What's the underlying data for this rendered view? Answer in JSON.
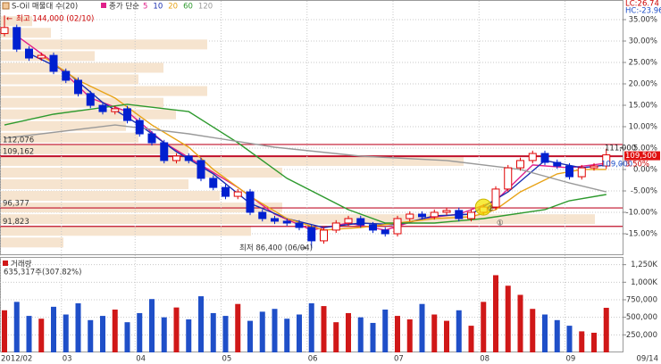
{
  "chart_data": [
    {
      "type": "candlestick",
      "title": "S-Oil 매물대 수(20)",
      "ma_legend_title": "종가 단순",
      "high_label": "최고 144,000 (02/10)",
      "low_label": "최저 86,400 (06/04)",
      "lc_label": "LC:26.74",
      "hc_label": "HC:-23.96",
      "change_label": "3.50%",
      "annotations": [
        "①",
        "②"
      ],
      "up_color": "#e00000",
      "down_color": "#0020d0",
      "open": [
        139500,
        141000,
        135650,
        133450,
        134100,
        130150,
        127950,
        124650,
        121750,
        120200,
        120900,
        118000,
        114700,
        112500,
        108100,
        109200,
        108100,
        103700,
        101450,
        99250,
        100350,
        95300,
        93750,
        93100,
        92650,
        91550,
        88250,
        90900,
        92650,
        93750,
        92200,
        90900,
        90000,
        93750,
        94850,
        94200,
        95300,
        95750,
        93750,
        95300,
        96600,
        101050,
        106300,
        108100,
        109850,
        107650,
        106750,
        104100,
        106300,
        106750
      ],
      "high": [
        144000,
        141700,
        136350,
        134800,
        134800,
        130850,
        128650,
        125350,
        122450,
        121600,
        121600,
        118700,
        115400,
        113200,
        109900,
        109900,
        108800,
        104400,
        102150,
        101050,
        101050,
        96000,
        94450,
        93800,
        93350,
        92250,
        91600,
        93350,
        94450,
        94450,
        92900,
        91600,
        94450,
        95550,
        95550,
        96000,
        96450,
        96450,
        96000,
        97300,
        101750,
        107000,
        108800,
        110550,
        110550,
        108350,
        107450,
        107000,
        107450,
        111000
      ],
      "low": [
        138800,
        134950,
        132750,
        132750,
        129450,
        127250,
        123950,
        121050,
        119500,
        119500,
        117300,
        114000,
        111800,
        107400,
        107400,
        107400,
        103000,
        100750,
        98550,
        98550,
        94600,
        93050,
        92400,
        91950,
        90850,
        86400,
        87550,
        90200,
        91950,
        91500,
        90200,
        89300,
        89300,
        93050,
        93500,
        93500,
        94600,
        93050,
        93050,
        94600,
        95900,
        100350,
        105600,
        107400,
        106950,
        106050,
        103400,
        103400,
        105600,
        106050
      ],
      "close": [
        141000,
        135650,
        133450,
        134100,
        130150,
        127950,
        124650,
        121750,
        120200,
        120900,
        118000,
        114700,
        112500,
        108100,
        109200,
        108100,
        103700,
        101450,
        99250,
        100350,
        95300,
        93750,
        93100,
        92650,
        91550,
        88250,
        90900,
        92650,
        93750,
        92200,
        90900,
        90000,
        93750,
        94850,
        94200,
        95300,
        95750,
        93750,
        95300,
        96600,
        101050,
        106300,
        108100,
        109850,
        107650,
        106750,
        104100,
        106300,
        106750,
        109500
      ],
      "moving_averages": [
        {
          "name": "5",
          "color": "#e0208a",
          "x": [
            1,
            4,
            7,
            10,
            13,
            16,
            19,
            22,
            25,
            28,
            31,
            34,
            37,
            40,
            43,
            46,
            49
          ],
          "values": [
            138950,
            132350,
            123550,
            120200,
            112500,
            107000,
            101450,
            94850,
            90900,
            92650,
            90900,
            93750,
            94850,
            98150,
            107000,
            106300,
            107450
          ]
        },
        {
          "name": "10",
          "color": "#1a2fb0",
          "x": [
            2,
            5,
            8,
            11,
            14,
            17,
            20,
            23,
            26,
            29,
            32,
            35,
            38,
            41,
            44,
            47,
            49
          ],
          "values": [
            134550,
            130150,
            122450,
            116900,
            110300,
            104800,
            97500,
            93750,
            91550,
            92650,
            92200,
            94400,
            94850,
            100350,
            108100,
            106300,
            107000
          ]
        },
        {
          "name": "20",
          "color": "#e8a317",
          "x": [
            3,
            6,
            9,
            12,
            15,
            17,
            20,
            23,
            26,
            29,
            32,
            35,
            38,
            40,
            42,
            45,
            47,
            49
          ],
          "values": [
            134100,
            127950,
            123550,
            116900,
            111400,
            105900,
            99250,
            93750,
            90900,
            91550,
            92650,
            93750,
            94200,
            95950,
            100350,
            104800,
            105900,
            105900
          ]
        },
        {
          "name": "60",
          "color": "#2e9a2e",
          "x": [
            0,
            4,
            10,
            15,
            19,
            23,
            28,
            31,
            35,
            39,
            44,
            46,
            49
          ],
          "values": [
            116900,
            119550,
            122000,
            120200,
            112500,
            103700,
            95950,
            92650,
            92650,
            93750,
            95950,
            98150,
            99700
          ]
        },
        {
          "name": "120",
          "color": "#9a9a9a",
          "x": [
            0,
            9,
            15,
            22,
            29,
            36,
            42,
            46,
            49
          ],
          "values": [
            113600,
            116900,
            114700,
            111400,
            109200,
            108100,
            105900,
            102550,
            100350
          ]
        }
      ],
      "levels": [
        {
          "value": 112076,
          "label": "112,076"
        },
        {
          "value": 109162,
          "label": "109,162"
        },
        {
          "value": 96377,
          "label": "96,377"
        },
        {
          "value": 91823,
          "label": "91,823"
        }
      ],
      "level_color": "#c0102a",
      "price_tags": [
        {
          "value": 111000,
          "label": "111,000"
        },
        {
          "value": 109500,
          "label": "109,500"
        },
        {
          "value": 109000,
          "label": "109,000"
        }
      ],
      "volume_profile": {
        "color": "#f6e4cf",
        "bins": [
          86400,
          89280,
          92160,
          95040,
          97920,
          100800,
          103680,
          106560,
          109440,
          112320,
          115200,
          118080,
          120960,
          123840,
          126720,
          129600,
          132480,
          135360,
          138240,
          141120,
          144000
        ],
        "values": [
          10,
          40,
          95,
          45,
          35,
          30,
          45,
          74,
          30,
          22,
          20,
          28,
          26,
          33,
          22,
          26,
          15,
          33,
          8,
          5
        ]
      },
      "ylim": [
        84925,
        147796
      ],
      "yticks": [
        {
          "value": 142941,
          "label": "35.00%"
        },
        {
          "value": 137647,
          "label": "30.00%"
        },
        {
          "value": 132353,
          "label": "25.00%"
        },
        {
          "value": 127058,
          "label": "20.00%"
        },
        {
          "value": 121764,
          "label": "15.00%"
        },
        {
          "value": 116470,
          "label": "10.00%"
        },
        {
          "value": 111176,
          "label": "5.00%"
        },
        {
          "value": 105882,
          "label": "0.00%"
        },
        {
          "value": 100588,
          "label": "-5.00%"
        },
        {
          "value": 95294,
          "label": "-10.00%"
        },
        {
          "value": 90000,
          "label": "-15.00%"
        }
      ],
      "grid": true
    },
    {
      "type": "bar",
      "title": "거래량",
      "volume_label": "635,317주(307.82%)",
      "up_color": "#d01818",
      "down_color": "#1f4fc8",
      "categories": [
        "2012/02",
        null,
        null,
        null,
        null,
        "03",
        null,
        null,
        null,
        null,
        null,
        "04",
        null,
        null,
        null,
        null,
        null,
        null,
        "05",
        null,
        null,
        null,
        null,
        null,
        null,
        "06",
        null,
        null,
        null,
        null,
        null,
        null,
        "07",
        null,
        null,
        null,
        null,
        null,
        null,
        "08",
        null,
        null,
        null,
        null,
        null,
        null,
        "09",
        null,
        null,
        null
      ],
      "end_date_label": "09/14",
      "values": [
        600000,
        720000,
        520000,
        480000,
        650000,
        540000,
        700000,
        460000,
        520000,
        610000,
        430000,
        560000,
        760000,
        500000,
        640000,
        470000,
        800000,
        560000,
        520000,
        690000,
        450000,
        580000,
        620000,
        480000,
        540000,
        700000,
        660000,
        430000,
        560000,
        500000,
        420000,
        610000,
        520000,
        470000,
        690000,
        540000,
        450000,
        600000,
        380000,
        720000,
        1100000,
        950000,
        820000,
        620000,
        540000,
        460000,
        380000,
        300000,
        280000,
        635317
      ],
      "ylim": [
        0,
        1360000
      ],
      "yticks": [
        {
          "value": 1250000,
          "label": "1,250K"
        },
        {
          "value": 1000000,
          "label": "1,000K"
        },
        {
          "value": 750000,
          "label": "750,000"
        },
        {
          "value": 500000,
          "label": "500,000"
        },
        {
          "value": 250000,
          "label": "250,000"
        }
      ],
      "grid": true
    }
  ]
}
